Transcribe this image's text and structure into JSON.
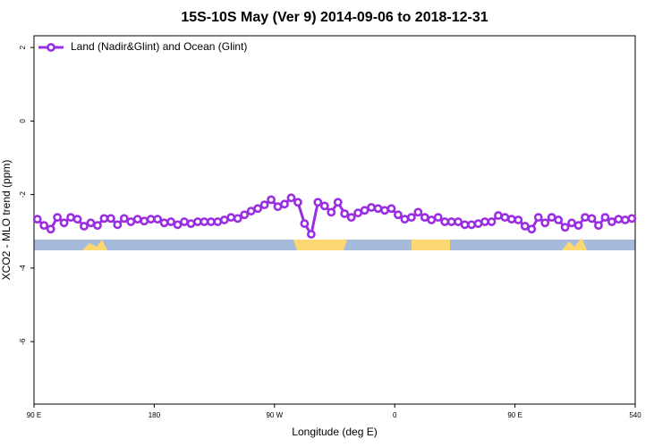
{
  "chart_data": {
    "type": "line",
    "title": "15S-10S May (Ver 9)   2014-09-06 to 2018-12-31",
    "xlabel": "Longitude (deg E)",
    "ylabel": "XCO2 - MLO trend (ppm)",
    "x": [
      92.5,
      97.5,
      102.5,
      107.5,
      112.5,
      117.5,
      122.5,
      127.5,
      132.5,
      137.5,
      142.5,
      147.5,
      152.5,
      157.5,
      162.5,
      167.5,
      172.5,
      177.5,
      182.5,
      187.5,
      192.5,
      197.5,
      202.5,
      207.5,
      212.5,
      217.5,
      222.5,
      227.5,
      232.5,
      237.5,
      242.5,
      247.5,
      252.5,
      257.5,
      262.5,
      267.5,
      272.5,
      277.5,
      282.5,
      287.5,
      292.5,
      297.5,
      302.5,
      307.5,
      312.5,
      317.5,
      322.5,
      327.5,
      332.5,
      337.5,
      342.5,
      347.5,
      352.5,
      357.5,
      362.5,
      367.5,
      372.5,
      377.5,
      382.5,
      387.5,
      392.5,
      397.5,
      402.5,
      407.5,
      412.5,
      417.5,
      422.5,
      427.5,
      432.5,
      437.5,
      442.5,
      447.5,
      452.5,
      457.5,
      462.5,
      467.5,
      472.5,
      477.5,
      482.5,
      487.5,
      492.5,
      497.5,
      502.5,
      507.5,
      512.5,
      517.5,
      522.5,
      527.5,
      532.5,
      537.5
    ],
    "series": [
      {
        "name": "Land (Nadir&Glint) and Ocean (Glint)",
        "color": "#9a2ee0",
        "values": [
          -2.67,
          -2.84,
          -2.94,
          -2.62,
          -2.77,
          -2.62,
          -2.67,
          -2.86,
          -2.77,
          -2.84,
          -2.65,
          -2.65,
          -2.82,
          -2.65,
          -2.74,
          -2.67,
          -2.72,
          -2.67,
          -2.67,
          -2.77,
          -2.74,
          -2.82,
          -2.74,
          -2.79,
          -2.74,
          -2.74,
          -2.74,
          -2.74,
          -2.69,
          -2.62,
          -2.65,
          -2.55,
          -2.45,
          -2.38,
          -2.28,
          -2.14,
          -2.33,
          -2.26,
          -2.09,
          -2.21,
          -2.79,
          -3.08,
          -2.21,
          -2.31,
          -2.48,
          -2.21,
          -2.52,
          -2.62,
          -2.5,
          -2.43,
          -2.35,
          -2.38,
          -2.43,
          -2.38,
          -2.55,
          -2.67,
          -2.62,
          -2.48,
          -2.62,
          -2.69,
          -2.62,
          -2.74,
          -2.74,
          -2.74,
          -2.82,
          -2.82,
          -2.79,
          -2.74,
          -2.74,
          -2.57,
          -2.62,
          -2.67,
          -2.69,
          -2.86,
          -2.94,
          -2.62,
          -2.77,
          -2.62,
          -2.69,
          -2.89,
          -2.77,
          -2.84,
          -2.62,
          -2.65,
          -2.84,
          -2.62,
          -2.74,
          -2.67,
          -2.69,
          -2.65
        ]
      }
    ],
    "xlim": [
      90,
      540
    ],
    "xticks": [
      {
        "value": 90,
        "label": "90 E"
      },
      180,
      {
        "value": 270,
        "label": "90 W"
      },
      {
        "value": 360,
        "label": "0"
      },
      {
        "value": 450,
        "label": "90 E"
      },
      540
    ],
    "ylim": [
      -7.7,
      2.32
    ],
    "yticks": [
      2,
      0,
      -2,
      -4,
      -6
    ],
    "legend": "top-left"
  }
}
